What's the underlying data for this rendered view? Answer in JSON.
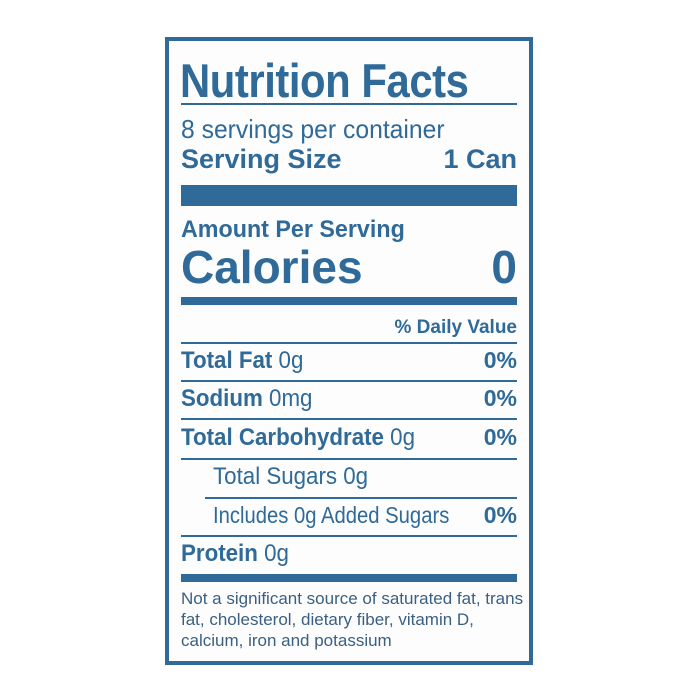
{
  "title": "Nutrition Facts",
  "servings_per_container": "8 servings per container",
  "serving_size": {
    "label": "Serving Size",
    "value": "1 Can"
  },
  "amount_per_serving": "Amount Per Serving",
  "calories": {
    "label": "Calories",
    "value": "0"
  },
  "daily_value_header": "% Daily Value",
  "nutrients": [
    {
      "name": "Total Fat",
      "amount": "0g",
      "dv": "0%"
    },
    {
      "name": "Sodium",
      "amount": "0mg",
      "dv": "0%"
    },
    {
      "name": "Total Carbohydrate",
      "amount": "0g",
      "dv": "0%"
    },
    {
      "name": "Total Sugars",
      "amount": "0g",
      "dv": ""
    },
    {
      "name": "Includes 0g Added Sugars",
      "amount": "",
      "dv": "0%"
    },
    {
      "name": "Protein",
      "amount": "0g",
      "dv": ""
    }
  ],
  "footnote": "Not a significant source of saturated fat, trans fat, cholesterol, dietary fiber, vitamin D, calcium, iron and potassium",
  "colors": {
    "ink": "#2f6a98",
    "background": "#ffffff"
  }
}
